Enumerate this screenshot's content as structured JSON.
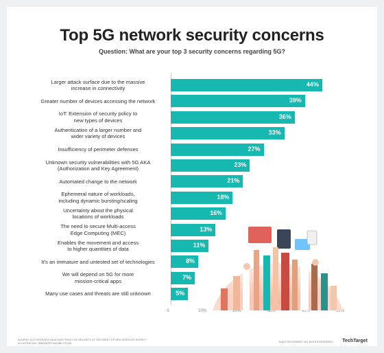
{
  "title": "Top 5G network security concerns",
  "subtitle": "Question: What are your top 3 security concerns regarding 5G?",
  "chart_data": {
    "type": "bar",
    "orientation": "horizontal",
    "categories": [
      [
        "Larger attack surface due to the massive",
        "increase in connectivity"
      ],
      [
        "Greater number of devices accessing the network"
      ],
      [
        "IoT: Extension of security policy to",
        "new types of devices"
      ],
      [
        "Authentication of a larger number and",
        "wider variety of devices"
      ],
      [
        "Insufficiency of perimeter defenses"
      ],
      [
        "Unknown security vulnerabilities with 5G AKA",
        "(Authorization and Key Agreement)"
      ],
      [
        "Automated change to the network"
      ],
      [
        "Ephemeral nature of workloads,",
        "including dynamic bursting/scaling"
      ],
      [
        "Uncertainty about the physical",
        "locations of workloads"
      ],
      [
        "The need to secure Multi-access",
        "Edge Computing (MEC)"
      ],
      [
        "Enables the movement and access",
        "to higher quantities of data"
      ],
      [
        "It's an immature and untested set of technologies"
      ],
      [
        "We will depend on 5G for more",
        "mission-critical apps"
      ],
      [
        "Many use cases and threats are still unknown"
      ]
    ],
    "values": [
      44,
      39,
      36,
      33,
      27,
      23,
      21,
      18,
      16,
      13,
      11,
      8,
      7,
      5
    ],
    "value_labels": [
      "44%",
      "39%",
      "36%",
      "33%",
      "27%",
      "23%",
      "21%",
      "18%",
      "16%",
      "13%",
      "11%",
      "8%",
      "7%",
      "5%"
    ],
    "xlim": [
      0,
      50
    ],
    "ticks": [
      "0",
      "10%",
      "20%",
      "30%",
      "40%",
      "50%"
    ],
    "bar_color": "#17b8b0",
    "grid": false,
    "legend": "none"
  },
  "footnote": "SOURCE: ACG RESEARCH BUILDING TRUST: 5G SECURITY AT THE DEBUT OF NEW SERVICES SURVEY; ILLUSTRATION: JONGQUIST/ADOBE STOCK",
  "credit": "©2023 TECHTARGET. ALL RIGHTS RESERVED.",
  "logo": "TechTarget",
  "colors": {
    "accent": "#17b8b0",
    "title": "#222222",
    "text": "#333333"
  }
}
